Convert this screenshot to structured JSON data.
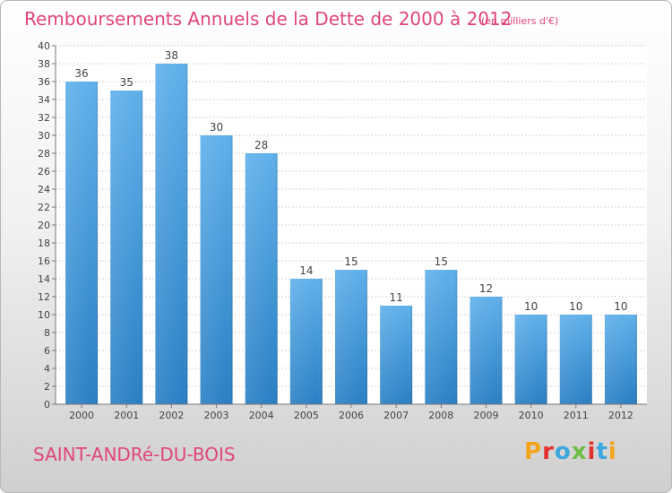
{
  "header": {
    "title": "Remboursements Annuels de la Dette de 2000 à 2012",
    "subtitle": "(en milliers d'€)"
  },
  "footer": {
    "commune": "SAINT-ANDRé-DU-BOIS",
    "logo": "Proxiti"
  },
  "colors": {
    "accent": "#e0457b",
    "bar_top": "#5fb0ea",
    "bar_bottom": "#2a7fc4"
  },
  "chart_data": {
    "type": "bar",
    "categories": [
      "2000",
      "2001",
      "2002",
      "2003",
      "2004",
      "2005",
      "2006",
      "2007",
      "2008",
      "2009",
      "2010",
      "2011",
      "2012"
    ],
    "values": [
      36,
      35,
      38,
      30,
      28,
      14,
      15,
      11,
      15,
      12,
      10,
      10,
      10
    ],
    "title": "Remboursements Annuels de la Dette de 2000 à 2012",
    "subtitle": "(en milliers d'€)",
    "ylim": [
      0,
      40
    ],
    "yticks": [
      0,
      2,
      4,
      6,
      8,
      10,
      12,
      14,
      16,
      18,
      20,
      22,
      24,
      26,
      28,
      30,
      32,
      34,
      36,
      38,
      40
    ],
    "grid": true,
    "data_labels": true
  }
}
